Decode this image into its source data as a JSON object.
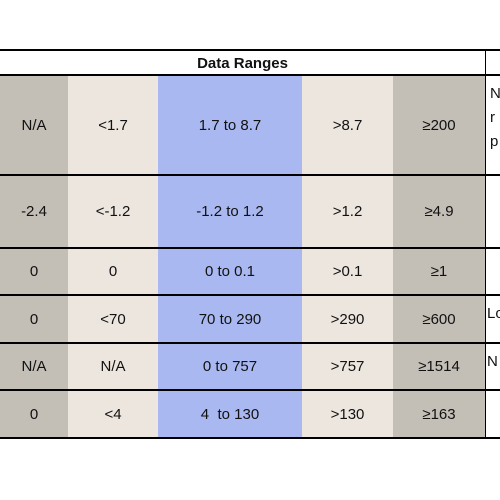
{
  "header": {
    "title": "Data Ranges"
  },
  "table": {
    "rows": [
      [
        "N/A",
        "<1.7",
        "1.7 to 8.7",
        ">8.7",
        "≥200"
      ],
      [
        "-2.4",
        "<-1.2",
        "-1.2 to 1.2",
        ">1.2",
        "≥4.9"
      ],
      [
        "0",
        "0",
        "0 to 0.1",
        ">0.1",
        "≥1"
      ],
      [
        "0",
        "<70",
        "70 to 290",
        ">290",
        "≥600"
      ],
      [
        "N/A",
        "N/A",
        "0 to 757",
        ">757",
        "≥1514"
      ],
      [
        "0",
        "<4",
        "4  to 130",
        ">130",
        "≥163"
      ]
    ],
    "notes": {
      "0": [
        "N",
        "r",
        "p"
      ],
      "3": [
        "Lo"
      ],
      "4": [
        "N"
      ]
    }
  }
}
